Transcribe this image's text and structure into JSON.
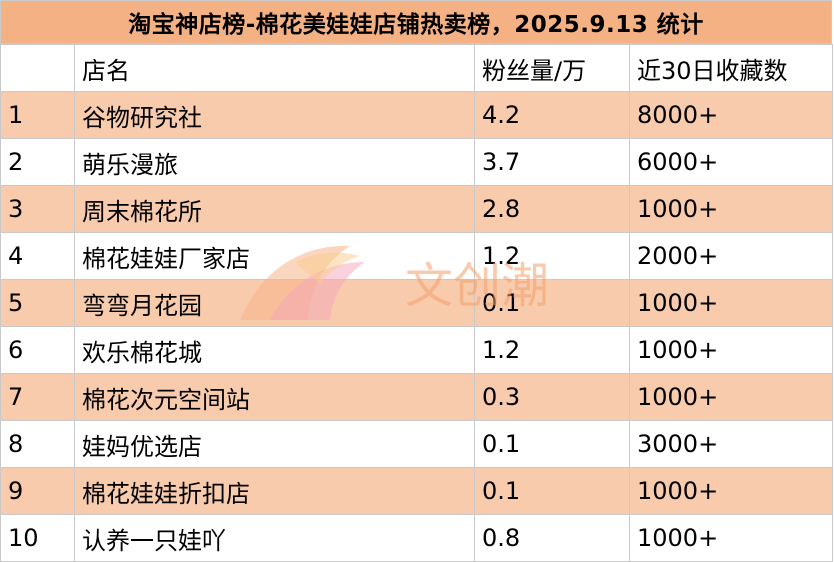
{
  "title": "淘宝神店榜-棉花美娃娃店铺热卖榜，2025.9.13 统计",
  "table": {
    "headers": [
      "",
      "店名",
      "粉丝量/万",
      "近30日收藏数"
    ],
    "rows": [
      [
        "1",
        "谷物研究社",
        "4.2",
        "8000+"
      ],
      [
        "2",
        "萌乐漫旅",
        "3.7",
        "6000+"
      ],
      [
        "3",
        "周末棉花所",
        "2.8",
        "1000+"
      ],
      [
        "4",
        "棉花娃娃厂家店",
        "1.2",
        "2000+"
      ],
      [
        "5",
        "弯弯月花园",
        "0.1",
        "1000+"
      ],
      [
        "6",
        "欢乐棉花城",
        "1.2",
        "1000+"
      ],
      [
        "7",
        "棉花次元空间站",
        "0.3",
        "1000+"
      ],
      [
        "8",
        "娃妈优选店",
        "0.1",
        "3000+"
      ],
      [
        "9",
        "棉花娃娃折扣店",
        "0.1",
        "1000+"
      ],
      [
        "10",
        "认养一只娃吖",
        "0.8",
        "1000+"
      ]
    ]
  },
  "watermark": {
    "text": "文创潮",
    "icon": "logo-swoosh-icon",
    "color": "#f5a06a"
  },
  "colors": {
    "title_bg": "#f4b183",
    "odd_row_bg": "#f8cbad",
    "even_row_bg": "#ffffff",
    "grid": "#c9c9c9"
  }
}
